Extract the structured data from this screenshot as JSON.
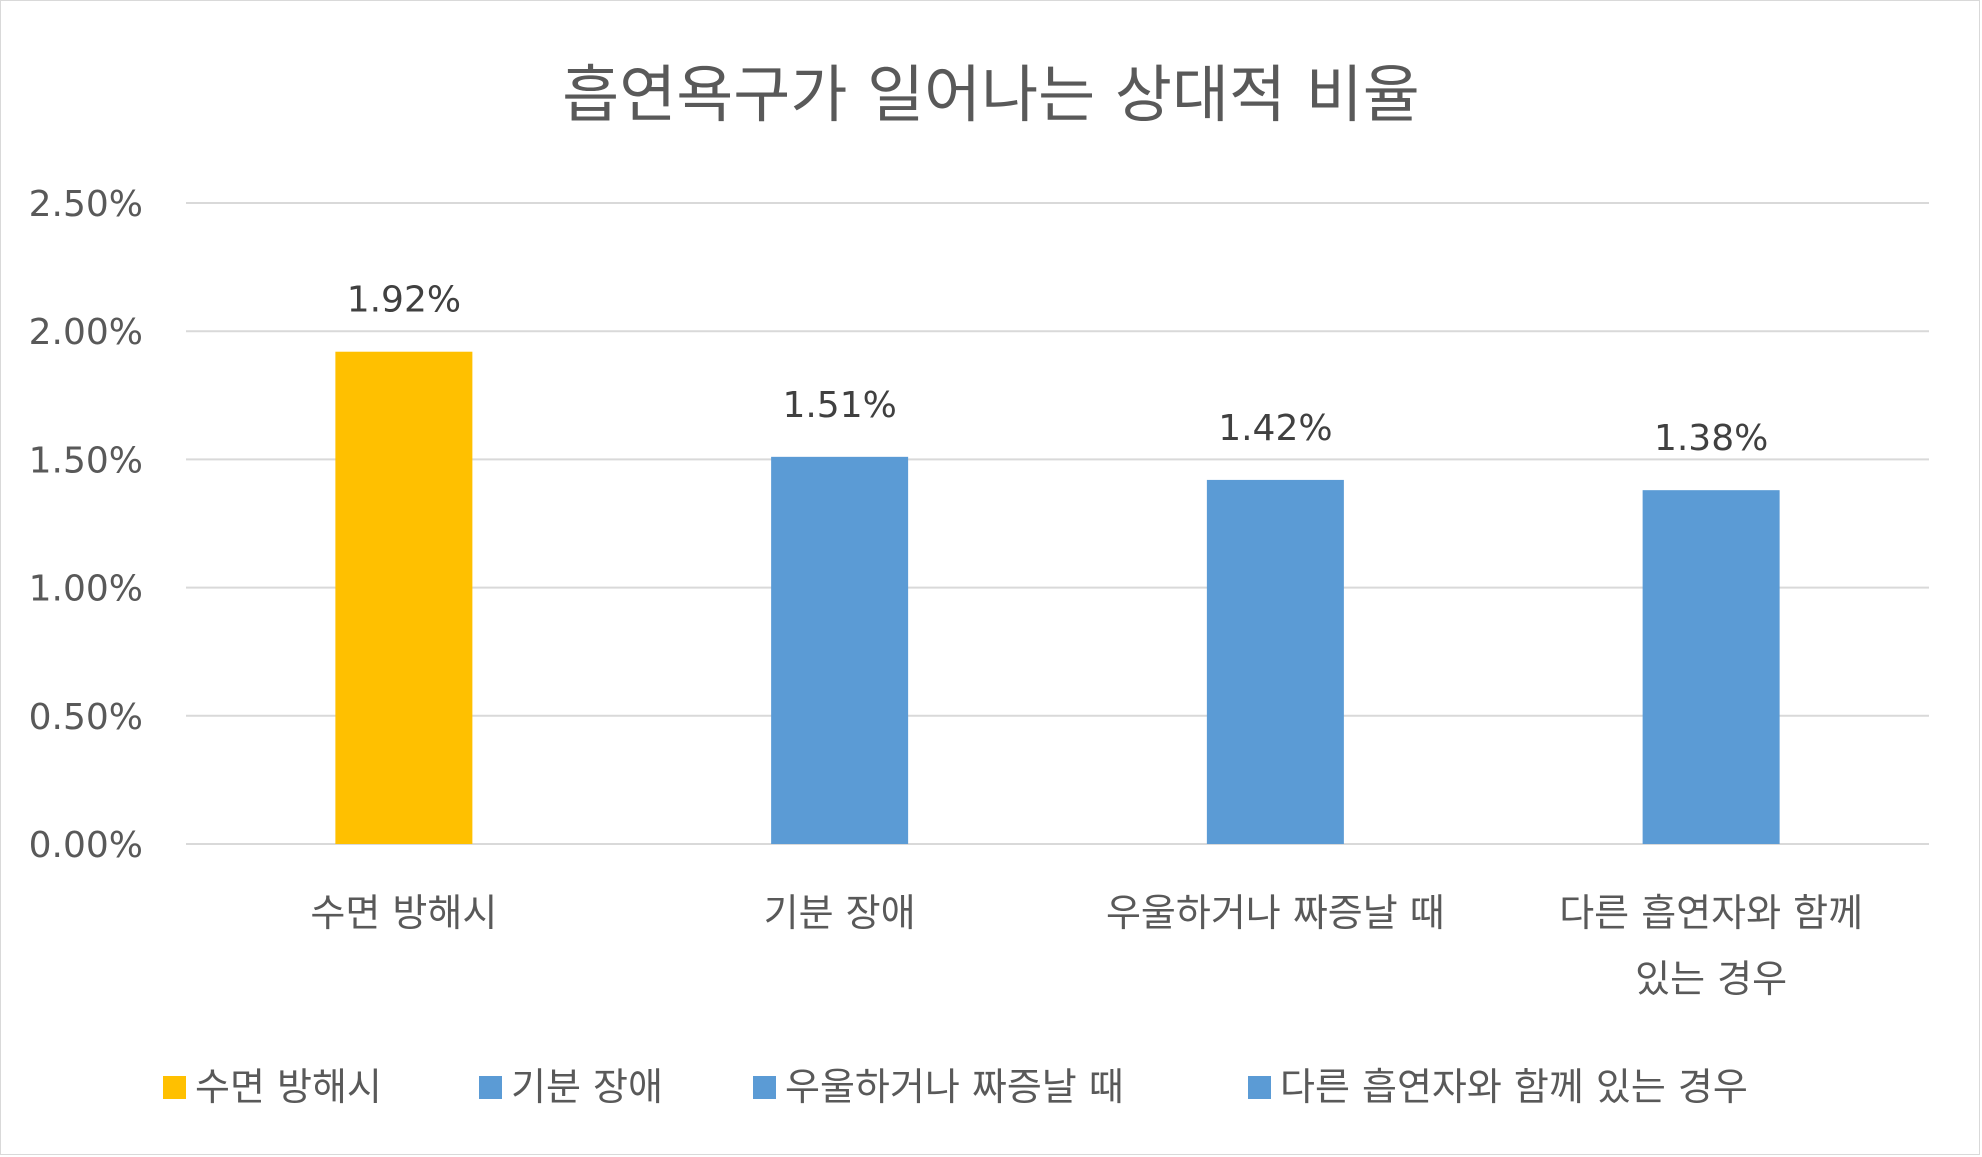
{
  "chart_data": {
    "type": "bar",
    "title": "흡연욕구가 일어나는 상대적 비율",
    "xlabel": "",
    "ylabel": "",
    "categories": [
      [
        "수면 방해시"
      ],
      [
        "기분 장애"
      ],
      [
        "우울하거나 짜증날 때"
      ],
      [
        "다른 흡연자와 함께",
        "있는 경우"
      ]
    ],
    "values": [
      1.92,
      1.51,
      1.42,
      1.38
    ],
    "data_labels": [
      "1.92%",
      "1.51%",
      "1.42%",
      "1.38%"
    ],
    "colors": [
      "#FFC000",
      "#5B9BD5",
      "#5B9BD5",
      "#5B9BD5"
    ],
    "ylim": [
      0,
      2.5
    ],
    "yticks": [
      0,
      0.5,
      1.0,
      1.5,
      2.0,
      2.5
    ],
    "ytick_labels": [
      "0.00%",
      "0.50%",
      "1.00%",
      "1.50%",
      "2.00%",
      "2.50%"
    ],
    "grid": true,
    "legend": {
      "position": "bottom",
      "entries": [
        {
          "label": "수면 방해시",
          "color": "#FFC000"
        },
        {
          "label": "기분 장애",
          "color": "#5B9BD5"
        },
        {
          "label": "우울하거나 짜증날 때",
          "color": "#5B9BD5"
        },
        {
          "label": "다른 흡연자와 함께 있는 경우",
          "color": "#5B9BD5"
        }
      ]
    }
  }
}
